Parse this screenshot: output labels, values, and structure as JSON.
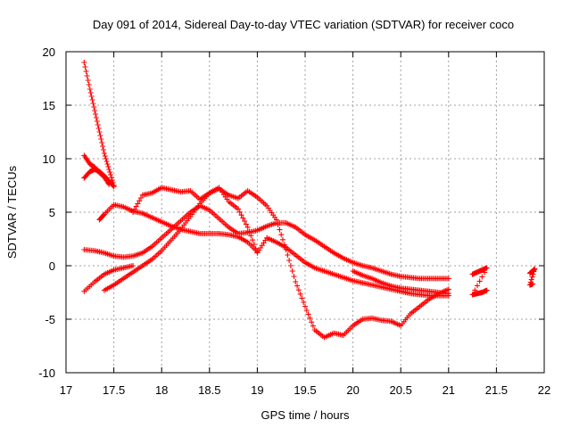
{
  "chart_data": {
    "type": "scatter",
    "title": "Day 091 of 2014, Sidereal Day-to-day VTEC variation (SDTVAR) for receiver coco",
    "xlabel": "GPS time / hours",
    "ylabel": "SDTVAR / TECUs",
    "xlim": [
      17,
      22
    ],
    "ylim": [
      -10,
      20
    ],
    "xticks": [
      "17",
      "17.5",
      "18",
      "18.5",
      "19",
      "19.5",
      "20",
      "20.5",
      "21",
      "21.5",
      "22"
    ],
    "yticks": [
      "-10",
      "-5",
      "0",
      "5",
      "10",
      "15",
      "20"
    ],
    "grid": true,
    "marker": "plus",
    "color": "#ff0000",
    "series": [
      {
        "name": "arc1",
        "x": [
          17.19,
          17.25,
          17.3,
          17.35,
          17.4,
          17.45,
          17.5
        ],
        "y": [
          19.0,
          16.5,
          14.5,
          12.5,
          10.5,
          9.0,
          7.5
        ]
      },
      {
        "name": "arc2",
        "x": [
          17.19,
          17.25,
          17.3,
          17.35,
          17.4,
          17.45,
          17.5
        ],
        "y": [
          8.2,
          8.8,
          9.0,
          8.8,
          8.4,
          7.9,
          7.4
        ]
      },
      {
        "name": "arc3",
        "x": [
          17.19,
          17.25,
          17.3,
          17.35,
          17.4,
          17.45
        ],
        "y": [
          10.3,
          9.5,
          9.2,
          8.7,
          8.3,
          7.6
        ]
      },
      {
        "name": "arc4",
        "x": [
          17.35,
          17.4,
          17.5,
          17.6,
          17.7,
          17.8,
          17.9,
          18.0,
          18.1,
          18.2,
          18.3,
          18.4,
          18.5,
          18.6,
          18.7,
          18.8,
          18.9,
          19.0
        ],
        "y": [
          4.3,
          4.8,
          5.7,
          5.5,
          5.1,
          4.9,
          4.5,
          4.1,
          3.7,
          3.4,
          3.2,
          3.0,
          3.0,
          3.0,
          2.9,
          2.7,
          2.2,
          1.3
        ]
      },
      {
        "name": "arc5",
        "x": [
          17.19,
          17.3,
          17.4,
          17.5,
          17.6,
          17.7,
          17.8,
          17.9,
          18.0,
          18.1,
          18.2,
          18.3,
          18.4,
          18.5,
          18.6,
          18.7,
          18.8,
          18.9,
          19.0,
          19.1,
          19.2,
          19.3,
          19.4,
          19.5,
          19.6,
          19.7,
          19.8,
          19.9,
          20.0,
          20.1,
          20.2,
          20.3,
          20.4,
          20.5,
          20.6,
          20.7,
          20.8,
          20.9,
          21.0
        ],
        "y": [
          1.5,
          1.4,
          1.2,
          0.9,
          0.8,
          0.9,
          1.2,
          1.8,
          2.6,
          3.4,
          4.2,
          5.0,
          5.6,
          5.2,
          4.4,
          3.6,
          3.0,
          3.1,
          3.3,
          3.7,
          4.0,
          4.0,
          3.6,
          2.9,
          2.4,
          1.8,
          1.2,
          0.7,
          0.3,
          0.0,
          -0.2,
          -0.5,
          -0.8,
          -1.0,
          -1.1,
          -1.2,
          -1.2,
          -1.2,
          -1.2
        ]
      },
      {
        "name": "arc6",
        "x": [
          17.19,
          17.3,
          17.4,
          17.5,
          17.6,
          17.7
        ],
        "y": [
          -2.4,
          -1.5,
          -0.8,
          -0.4,
          -0.2,
          0.0
        ]
      },
      {
        "name": "arc7",
        "x": [
          17.4,
          17.5,
          17.6,
          17.7,
          17.8,
          17.9,
          18.0,
          18.1,
          18.2,
          18.3,
          18.4,
          18.5,
          18.6,
          18.7,
          18.8,
          18.9,
          19.0,
          19.1,
          19.2,
          19.3,
          19.4,
          19.5,
          19.6,
          19.7,
          19.8,
          19.9,
          20.0,
          20.1,
          20.2,
          20.3,
          20.4,
          20.5,
          20.6,
          20.7,
          20.8,
          20.9,
          21.0
        ],
        "y": [
          -2.3,
          -1.8,
          -1.2,
          -0.6,
          0.0,
          0.6,
          1.4,
          2.4,
          3.4,
          4.6,
          5.8,
          6.8,
          7.3,
          6.0,
          5.3,
          3.6,
          1.2,
          2.6,
          2.2,
          1.7,
          1.0,
          0.3,
          -0.2,
          -0.5,
          -0.8,
          -1.1,
          -1.4,
          -1.6,
          -1.8,
          -2.0,
          -2.2,
          -2.4,
          -2.6,
          -2.7,
          -2.8,
          -2.8,
          -2.8
        ]
      },
      {
        "name": "arc8",
        "x": [
          17.7,
          17.8,
          17.9,
          18.0,
          18.1,
          18.2,
          18.3,
          18.4,
          18.5,
          18.6,
          18.7,
          18.8,
          18.9,
          19.0,
          19.1,
          19.2,
          19.3,
          19.4,
          19.5,
          19.6,
          19.7,
          19.8,
          19.9,
          20.0,
          20.1,
          20.2,
          20.3,
          20.4,
          20.5,
          20.6,
          20.7,
          20.8,
          20.9,
          21.0
        ],
        "y": [
          5.0,
          6.6,
          6.8,
          7.3,
          7.1,
          6.9,
          7.0,
          6.2,
          6.8,
          7.2,
          6.6,
          6.3,
          7.0,
          6.4,
          5.6,
          4.3,
          1.5,
          -1.5,
          -3.8,
          -6.0,
          -6.7,
          -6.3,
          -6.5,
          -5.6,
          -5.0,
          -4.9,
          -5.1,
          -5.2,
          -5.6,
          -4.5,
          -3.8,
          -3.1,
          -2.6,
          -2.2
        ]
      },
      {
        "name": "arc9",
        "x": [
          20.0,
          20.1,
          20.2,
          20.3,
          20.4,
          20.5,
          20.6,
          20.7,
          20.8,
          20.9,
          21.0
        ],
        "y": [
          -0.5,
          -0.9,
          -1.2,
          -1.6,
          -1.9,
          -2.1,
          -2.2,
          -2.3,
          -2.4,
          -2.5,
          -2.6
        ]
      },
      {
        "name": "arc10",
        "x": [
          21.25,
          21.3,
          21.35,
          21.4,
          21.25,
          21.3,
          21.35,
          21.4
        ],
        "y": [
          -0.8,
          -0.6,
          -0.4,
          -0.2,
          -2.7,
          -2.6,
          -2.5,
          -2.3
        ]
      },
      {
        "name": "arc11",
        "x": [
          21.85,
          21.88,
          21.9,
          21.85,
          21.88
        ],
        "y": [
          -0.7,
          -0.5,
          -0.3,
          -1.8,
          -1.7
        ]
      }
    ]
  }
}
